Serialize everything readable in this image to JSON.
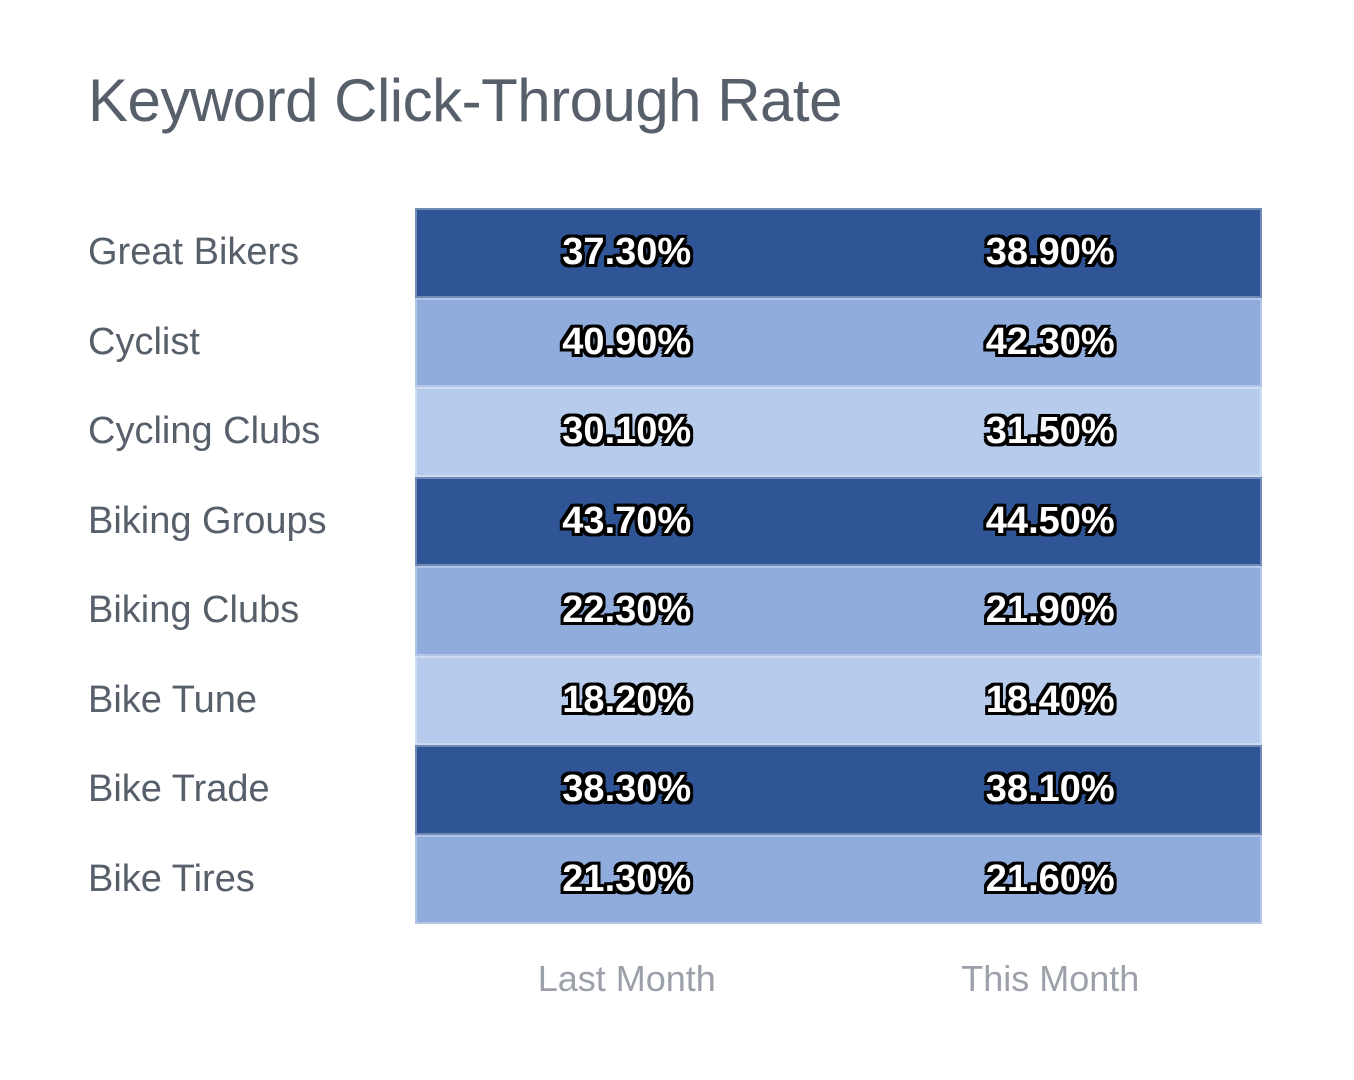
{
  "title": "Keyword Click-Through Rate",
  "column_labels": [
    "Last Month",
    "This Month"
  ],
  "rows": [
    {
      "label": "Great Bikers",
      "last_month": "37.30%",
      "this_month": "38.90%",
      "shade": "dark"
    },
    {
      "label": "Cyclist",
      "last_month": "40.90%",
      "this_month": "42.30%",
      "shade": "medium"
    },
    {
      "label": "Cycling Clubs",
      "last_month": "30.10%",
      "this_month": "31.50%",
      "shade": "light"
    },
    {
      "label": "Biking Groups",
      "last_month": "43.70%",
      "this_month": "44.50%",
      "shade": "dark"
    },
    {
      "label": "Biking Clubs",
      "last_month": "22.30%",
      "this_month": "21.90%",
      "shade": "medium"
    },
    {
      "label": "Bike Tune",
      "last_month": "18.20%",
      "this_month": "18.40%",
      "shade": "light"
    },
    {
      "label": "Bike Trade",
      "last_month": "38.30%",
      "this_month": "38.10%",
      "shade": "dark"
    },
    {
      "label": "Bike Tires",
      "last_month": "21.30%",
      "this_month": "21.60%",
      "shade": "medium"
    }
  ],
  "colors": {
    "background": "#FFFFFF",
    "shade_dark": "#2F5596",
    "shade_medium": "#8FACDC",
    "shade_light": "#B7CCEC",
    "title_text": "#575F6B",
    "row_label_text": "#575F6B",
    "axis_label_text": "#9CA1A9",
    "value_text": "#FFFFFF",
    "value_outline": "#000000"
  },
  "chart_data": {
    "type": "heatmap",
    "title": "Keyword Click-Through Rate",
    "categories": [
      "Great Bikers",
      "Cyclist",
      "Cycling Clubs",
      "Biking Groups",
      "Biking Clubs",
      "Bike Tune",
      "Bike Trade",
      "Bike Tires"
    ],
    "series": [
      {
        "name": "Last Month",
        "values": [
          37.3,
          40.9,
          30.1,
          43.7,
          22.3,
          18.2,
          38.3,
          21.3
        ]
      },
      {
        "name": "This Month",
        "values": [
          38.9,
          42.3,
          31.5,
          44.5,
          21.9,
          18.4,
          38.1,
          21.6
        ]
      }
    ],
    "value_format": "0.00%",
    "row_color_cycle": [
      "dark",
      "medium",
      "light"
    ],
    "legend_position": "none",
    "grid": false,
    "value_labels_shown": true,
    "column_axis_position": "bottom"
  }
}
